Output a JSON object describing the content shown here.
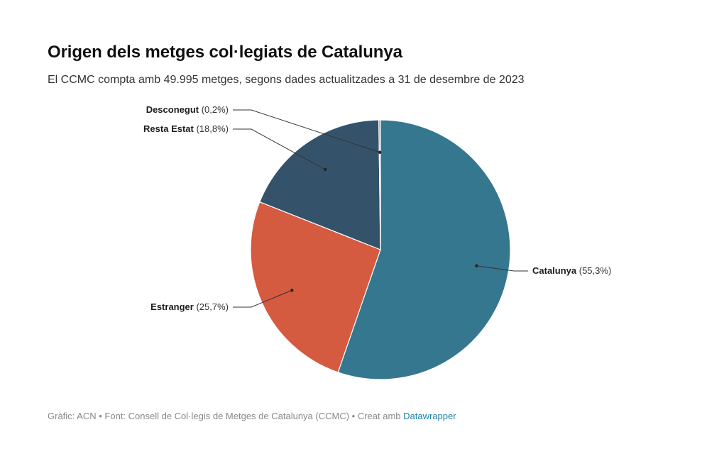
{
  "header": {
    "title": "Origen dels metges col·legiats de Catalunya",
    "subtitle": "El CCMC compta amb 49.995 metges, segons dades actualitzades a 31 de desembre de 2023"
  },
  "footer": {
    "source_text": "Gràfic: ACN • Font: Consell de Col·legis de Metges de Catalunya (CCMC) • Creat amb ",
    "link_text": "Datawrapper"
  },
  "chart_data": {
    "type": "pie",
    "title": "Origen dels metges col·legiats de Catalunya",
    "slices": [
      {
        "name": "Catalunya",
        "value": 55.3,
        "label": "(55,3%)",
        "color": "#35778f",
        "side": "right"
      },
      {
        "name": "Estranger",
        "value": 25.7,
        "label": "(25,7%)",
        "color": "#d45a40",
        "side": "left"
      },
      {
        "name": "Resta Estat",
        "value": 18.8,
        "label": "(18,8%)",
        "color": "#34536b",
        "side": "left"
      },
      {
        "name": "Desconegut",
        "value": 0.2,
        "label": "(0,2%)",
        "color": "#7d95a8",
        "side": "left"
      }
    ],
    "start": "12 o'clock",
    "direction": "clockwise"
  }
}
